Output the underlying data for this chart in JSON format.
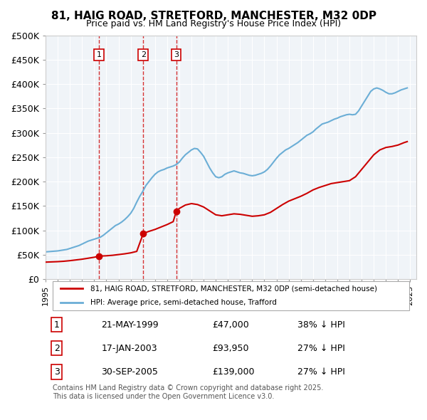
{
  "title": "81, HAIG ROAD, STRETFORD, MANCHESTER, M32 0DP",
  "subtitle": "Price paid vs. HM Land Registry's House Price Index (HPI)",
  "legend_property": "81, HAIG ROAD, STRETFORD, MANCHESTER, M32 0DP (semi-detached house)",
  "legend_hpi": "HPI: Average price, semi-detached house, Trafford",
  "footnote": "Contains HM Land Registry data © Crown copyright and database right 2025.\nThis data is licensed under the Open Government Licence v3.0.",
  "property_color": "#cc0000",
  "hpi_color": "#6baed6",
  "sale_marker_color": "#cc0000",
  "background_color": "#f0f4f8",
  "sales": [
    {
      "label": "1",
      "date": "21-MAY-1999",
      "price": 47000,
      "year_x": 1999.38,
      "hpi_pct": "38% ↓ HPI"
    },
    {
      "label": "2",
      "date": "17-JAN-2003",
      "price": 93950,
      "year_x": 2003.04,
      "hpi_pct": "27% ↓ HPI"
    },
    {
      "label": "3",
      "date": "30-SEP-2005",
      "price": 139000,
      "year_x": 2005.75,
      "hpi_pct": "27% ↓ HPI"
    }
  ],
  "hpi_data": {
    "years": [
      1995.0,
      1995.25,
      1995.5,
      1995.75,
      1996.0,
      1996.25,
      1996.5,
      1996.75,
      1997.0,
      1997.25,
      1997.5,
      1997.75,
      1998.0,
      1998.25,
      1998.5,
      1998.75,
      1999.0,
      1999.25,
      1999.5,
      1999.75,
      2000.0,
      2000.25,
      2000.5,
      2000.75,
      2001.0,
      2001.25,
      2001.5,
      2001.75,
      2002.0,
      2002.25,
      2002.5,
      2002.75,
      2003.0,
      2003.25,
      2003.5,
      2003.75,
      2004.0,
      2004.25,
      2004.5,
      2004.75,
      2005.0,
      2005.25,
      2005.5,
      2005.75,
      2006.0,
      2006.25,
      2006.5,
      2006.75,
      2007.0,
      2007.25,
      2007.5,
      2007.75,
      2008.0,
      2008.25,
      2008.5,
      2008.75,
      2009.0,
      2009.25,
      2009.5,
      2009.75,
      2010.0,
      2010.25,
      2010.5,
      2010.75,
      2011.0,
      2011.25,
      2011.5,
      2011.75,
      2012.0,
      2012.25,
      2012.5,
      2012.75,
      2013.0,
      2013.25,
      2013.5,
      2013.75,
      2014.0,
      2014.25,
      2014.5,
      2014.75,
      2015.0,
      2015.25,
      2015.5,
      2015.75,
      2016.0,
      2016.25,
      2016.5,
      2016.75,
      2017.0,
      2017.25,
      2017.5,
      2017.75,
      2018.0,
      2018.25,
      2018.5,
      2018.75,
      2019.0,
      2019.25,
      2019.5,
      2019.75,
      2020.0,
      2020.25,
      2020.5,
      2020.75,
      2021.0,
      2021.25,
      2021.5,
      2021.75,
      2022.0,
      2022.25,
      2022.5,
      2022.75,
      2023.0,
      2023.25,
      2023.5,
      2023.75,
      2024.0,
      2024.25,
      2024.5,
      2024.75
    ],
    "values": [
      56000,
      56500,
      57000,
      57500,
      58000,
      59000,
      60000,
      61000,
      63000,
      65000,
      67000,
      69000,
      72000,
      75000,
      78000,
      80000,
      82000,
      84000,
      86000,
      90000,
      95000,
      100000,
      105000,
      110000,
      113000,
      117000,
      122000,
      128000,
      135000,
      145000,
      158000,
      170000,
      180000,
      192000,
      200000,
      208000,
      215000,
      220000,
      223000,
      225000,
      228000,
      230000,
      232000,
      235000,
      240000,
      248000,
      255000,
      260000,
      265000,
      268000,
      267000,
      260000,
      252000,
      240000,
      228000,
      218000,
      210000,
      208000,
      210000,
      215000,
      218000,
      220000,
      222000,
      220000,
      218000,
      217000,
      215000,
      213000,
      212000,
      213000,
      215000,
      217000,
      220000,
      225000,
      232000,
      240000,
      248000,
      255000,
      260000,
      265000,
      268000,
      272000,
      276000,
      280000,
      285000,
      290000,
      295000,
      298000,
      302000,
      308000,
      313000,
      318000,
      320000,
      322000,
      325000,
      328000,
      330000,
      333000,
      335000,
      337000,
      338000,
      337000,
      338000,
      345000,
      355000,
      365000,
      375000,
      385000,
      390000,
      392000,
      390000,
      387000,
      383000,
      380000,
      380000,
      382000,
      385000,
      388000,
      390000,
      392000
    ]
  },
  "property_data": {
    "years": [
      1995.0,
      1995.5,
      1996.0,
      1996.5,
      1997.0,
      1997.5,
      1998.0,
      1998.5,
      1999.0,
      1999.38,
      1999.5,
      2000.0,
      2000.5,
      2001.0,
      2001.5,
      2002.0,
      2002.5,
      2003.04,
      2003.5,
      2004.0,
      2004.5,
      2005.0,
      2005.5,
      2005.75,
      2006.0,
      2006.5,
      2007.0,
      2007.5,
      2008.0,
      2008.5,
      2009.0,
      2009.5,
      2010.0,
      2010.5,
      2011.0,
      2011.5,
      2012.0,
      2012.5,
      2013.0,
      2013.5,
      2014.0,
      2014.5,
      2015.0,
      2015.5,
      2016.0,
      2016.5,
      2017.0,
      2017.5,
      2018.0,
      2018.5,
      2019.0,
      2019.5,
      2020.0,
      2020.5,
      2021.0,
      2021.5,
      2022.0,
      2022.5,
      2023.0,
      2023.5,
      2024.0,
      2024.5,
      2024.75
    ],
    "values": [
      35000,
      35500,
      36000,
      36800,
      38000,
      39500,
      41000,
      43000,
      45000,
      47000,
      47500,
      48000,
      49000,
      50500,
      52000,
      54000,
      57000,
      93950,
      98000,
      102000,
      107000,
      112000,
      118000,
      139000,
      145000,
      152000,
      155000,
      153000,
      148000,
      140000,
      132000,
      130000,
      132000,
      134000,
      133000,
      131000,
      129000,
      130000,
      132000,
      137000,
      145000,
      153000,
      160000,
      165000,
      170000,
      176000,
      183000,
      188000,
      192000,
      196000,
      198000,
      200000,
      202000,
      210000,
      225000,
      240000,
      255000,
      265000,
      270000,
      272000,
      275000,
      280000,
      282000
    ]
  },
  "ylim": [
    0,
    500000
  ],
  "xlim": [
    1995,
    2025.5
  ],
  "yticks": [
    0,
    50000,
    100000,
    150000,
    200000,
    250000,
    300000,
    350000,
    400000,
    450000,
    500000
  ]
}
